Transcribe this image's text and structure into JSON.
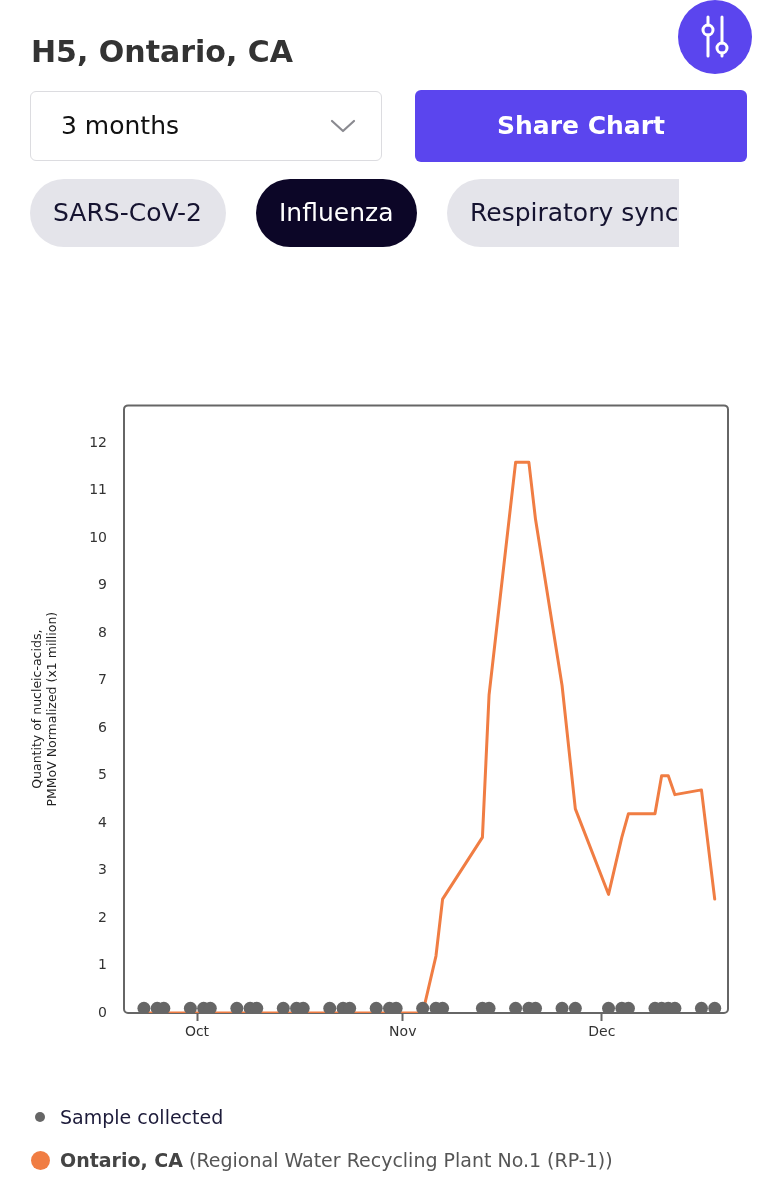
{
  "chart_data": {
    "type": "line",
    "title": "H5, Ontario, CA",
    "ylabel": "Quantity of nucleic-acids,\nPMMoV Normalized (x1 million)",
    "x": [
      "--09-23",
      "--09-25",
      "--09-26",
      "--09-30",
      "--10-02",
      "--10-03",
      "--10-07",
      "--10-09",
      "--10-10",
      "--10-14",
      "--10-16",
      "--10-17",
      "--10-21",
      "--10-23",
      "--10-24",
      "--10-28",
      "--10-30",
      "--10-31",
      "--11-04",
      "--11-06",
      "--11-07",
      "--11-13",
      "--11-14",
      "--11-18",
      "--11-20",
      "--11-21",
      "--11-25",
      "--11-27",
      "--12-02",
      "--12-04",
      "--12-05",
      "--12-09",
      "--12-10",
      "--12-11",
      "--12-12",
      "--12-16",
      "--12-18"
    ],
    "series": [
      {
        "name": "Ontario, CA (Regional Water Recycling Plant No.1 (RP-1))",
        "type": "line",
        "color": "#f07d43",
        "marker": "none",
        "values": [
          0,
          0,
          0,
          0,
          0,
          0,
          0,
          0,
          0,
          0,
          0,
          0,
          0,
          0,
          0,
          0,
          0,
          0,
          0,
          1.2,
          2.4,
          3.7,
          6.7,
          11.6,
          11.6,
          10.4,
          6.9,
          4.3,
          2.5,
          3.7,
          4.2,
          4.2,
          5.0,
          5.0,
          4.6,
          4.7,
          2.4
        ]
      },
      {
        "name": "Sample collected",
        "type": "scatter",
        "color": "#666666",
        "marker": "circle",
        "values": [
          0.1,
          0.1,
          0.1,
          0.1,
          0.1,
          0.1,
          0.1,
          0.1,
          0.1,
          0.1,
          0.1,
          0.1,
          0.1,
          0.1,
          0.1,
          0.1,
          0.1,
          0.1,
          0.1,
          0.1,
          0.1,
          0.1,
          0.1,
          0.1,
          0.1,
          0.1,
          0.1,
          0.1,
          0.1,
          0.1,
          0.1,
          0.1,
          0.1,
          0.1,
          0.1,
          0.1,
          0.1
        ]
      }
    ],
    "xlim": [
      "--09-20",
      "--12-20"
    ],
    "xticks": [
      {
        "value": "--10-01",
        "label": "Oct"
      },
      {
        "value": "--11-01",
        "label": "Nov"
      },
      {
        "value": "--12-01",
        "label": "Dec"
      }
    ],
    "ylim": [
      0,
      12.8
    ],
    "yticks": [
      0,
      1,
      2,
      3,
      4,
      5,
      6,
      7,
      8,
      9,
      10,
      11,
      12
    ],
    "legend": "bottom",
    "annotations": [
      "3 months",
      "Share Chart",
      "SARS-CoV-2",
      "Influenza",
      "Respiratory sync"
    ]
  }
}
